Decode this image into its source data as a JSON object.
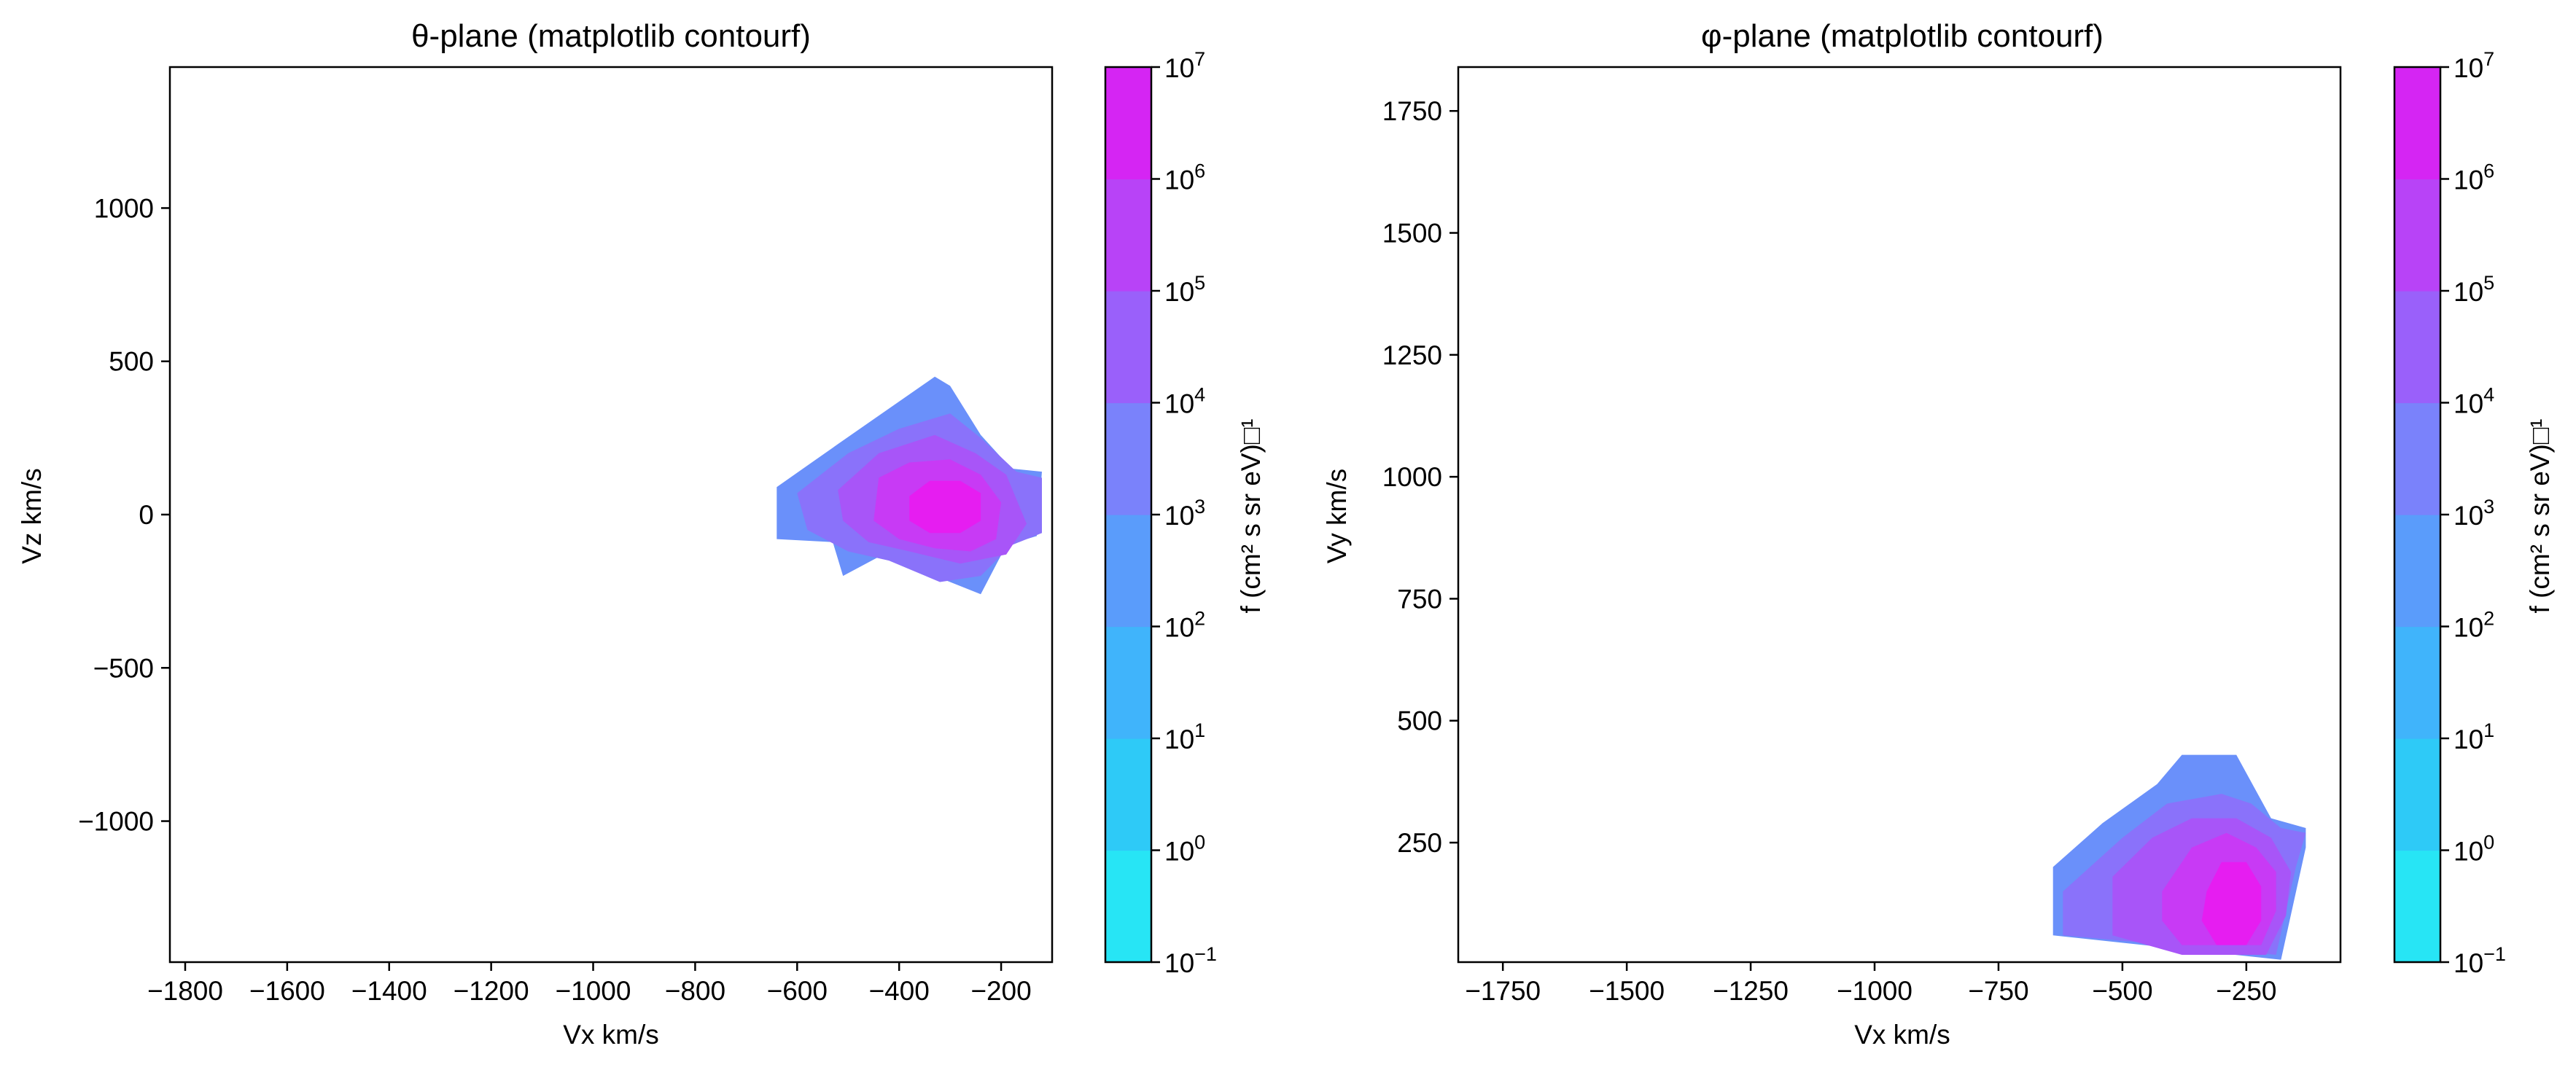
{
  "chart_data": [
    {
      "type": "contour",
      "title": "θ-plane (matplotlib contourf)",
      "xlabel": "Vx km/s",
      "ylabel": "Vz km/s",
      "xlim": [
        -1830,
        -100
      ],
      "ylim": [
        -1460,
        1460
      ],
      "xticks": [
        -1800,
        -1600,
        -1400,
        -1200,
        -1000,
        -800,
        -600,
        -400,
        -200
      ],
      "yticks": [
        -1000,
        -500,
        0,
        500,
        1000
      ],
      "colorbar": {
        "label": "f (cm² s sr eV)□¹",
        "scale": "log",
        "levels_exp": [
          -1,
          0,
          1,
          2,
          3,
          4,
          5,
          6,
          7
        ],
        "colors": [
          "#27e5f5",
          "#2ecaf7",
          "#40b4fb",
          "#5a9cfb",
          "#7a82fb",
          "#9a60fa",
          "#b843f7",
          "#d525f3",
          "#f00aef"
        ]
      },
      "regions": [
        {
          "level_exp": 2,
          "color": "#6a90fa",
          "points": [
            [
              -640,
              90
            ],
            [
              -520,
              230
            ],
            [
              -330,
              450
            ],
            [
              -300,
              420
            ],
            [
              -240,
              260
            ],
            [
              -180,
              150
            ],
            [
              -120,
              140
            ],
            [
              -130,
              -70
            ],
            [
              -190,
              -100
            ],
            [
              -240,
              -260
            ],
            [
              -330,
              -200
            ],
            [
              -420,
              -120
            ],
            [
              -510,
              -200
            ],
            [
              -530,
              -90
            ],
            [
              -640,
              -80
            ]
          ]
        },
        {
          "level_exp": 3,
          "color": "#8a72fa",
          "points": [
            [
              -600,
              70
            ],
            [
              -500,
              200
            ],
            [
              -400,
              280
            ],
            [
              -300,
              330
            ],
            [
              -240,
              250
            ],
            [
              -170,
              140
            ],
            [
              -120,
              120
            ],
            [
              -120,
              -60
            ],
            [
              -180,
              -100
            ],
            [
              -240,
              -200
            ],
            [
              -320,
              -220
            ],
            [
              -420,
              -150
            ],
            [
              -500,
              -120
            ],
            [
              -580,
              -50
            ]
          ]
        },
        {
          "level_exp": 4,
          "color": "#a855f8",
          "points": [
            [
              -520,
              80
            ],
            [
              -440,
              200
            ],
            [
              -330,
              260
            ],
            [
              -250,
              200
            ],
            [
              -190,
              130
            ],
            [
              -150,
              -30
            ],
            [
              -190,
              -130
            ],
            [
              -280,
              -160
            ],
            [
              -380,
              -120
            ],
            [
              -460,
              -90
            ],
            [
              -510,
              -20
            ]
          ]
        },
        {
          "level_exp": 5,
          "color": "#c83af5",
          "points": [
            [
              -440,
              120
            ],
            [
              -380,
              170
            ],
            [
              -300,
              180
            ],
            [
              -240,
              130
            ],
            [
              -200,
              40
            ],
            [
              -210,
              -80
            ],
            [
              -260,
              -120
            ],
            [
              -330,
              -110
            ],
            [
              -400,
              -80
            ],
            [
              -450,
              -20
            ]
          ]
        },
        {
          "level_exp": 6,
          "color": "#e61df1",
          "points": [
            [
              -380,
              60
            ],
            [
              -340,
              110
            ],
            [
              -280,
              110
            ],
            [
              -240,
              70
            ],
            [
              -240,
              -20
            ],
            [
              -280,
              -60
            ],
            [
              -340,
              -60
            ],
            [
              -380,
              -20
            ]
          ]
        }
      ]
    },
    {
      "type": "contour",
      "title": "φ-plane (matplotlib contourf)",
      "xlabel": "Vx km/s",
      "ylabel": "Vy km/s",
      "xlim": [
        -1840,
        -60
      ],
      "ylim": [
        5,
        1840
      ],
      "xticks": [
        -1750,
        -1500,
        -1250,
        -1000,
        -750,
        -500,
        -250
      ],
      "yticks": [
        250,
        500,
        750,
        1000,
        1250,
        1500,
        1750
      ],
      "colorbar": {
        "label": "f (cm² s sr eV)□¹",
        "scale": "log",
        "levels_exp": [
          -1,
          0,
          1,
          2,
          3,
          4,
          5,
          6,
          7
        ],
        "colors": [
          "#27e5f5",
          "#2ecaf7",
          "#40b4fb",
          "#5a9cfb",
          "#7a82fb",
          "#9a60fa",
          "#b843f7",
          "#d525f3",
          "#f00aef"
        ]
      },
      "regions": [
        {
          "level_exp": 2,
          "color": "#6a90fa",
          "points": [
            [
              -640,
              200
            ],
            [
              -540,
              290
            ],
            [
              -430,
              370
            ],
            [
              -380,
              430
            ],
            [
              -270,
              430
            ],
            [
              -200,
              300
            ],
            [
              -130,
              280
            ],
            [
              -130,
              240
            ],
            [
              -180,
              10
            ],
            [
              -640,
              60
            ]
          ]
        },
        {
          "level_exp": 3,
          "color": "#8a72fa",
          "points": [
            [
              -620,
              150
            ],
            [
              -500,
              260
            ],
            [
              -410,
              330
            ],
            [
              -300,
              350
            ],
            [
              -240,
              330
            ],
            [
              -180,
              280
            ],
            [
              -130,
              270
            ],
            [
              -150,
              200
            ],
            [
              -190,
              20
            ],
            [
              -620,
              60
            ]
          ]
        },
        {
          "level_exp": 4,
          "color": "#a855f8",
          "points": [
            [
              -520,
              180
            ],
            [
              -440,
              260
            ],
            [
              -360,
              300
            ],
            [
              -270,
              300
            ],
            [
              -200,
              260
            ],
            [
              -160,
              190
            ],
            [
              -170,
              100
            ],
            [
              -210,
              20
            ],
            [
              -380,
              20
            ],
            [
              -520,
              60
            ]
          ]
        },
        {
          "level_exp": 5,
          "color": "#c83af5",
          "points": [
            [
              -420,
              150
            ],
            [
              -360,
              240
            ],
            [
              -290,
              270
            ],
            [
              -230,
              240
            ],
            [
              -190,
              190
            ],
            [
              -190,
              110
            ],
            [
              -220,
              40
            ],
            [
              -380,
              40
            ],
            [
              -420,
              90
            ]
          ]
        },
        {
          "level_exp": 6,
          "color": "#e61df1",
          "points": [
            [
              -330,
              150
            ],
            [
              -300,
              210
            ],
            [
              -250,
              210
            ],
            [
              -220,
              160
            ],
            [
              -220,
              90
            ],
            [
              -250,
              40
            ],
            [
              -310,
              40
            ],
            [
              -340,
              90
            ]
          ]
        }
      ]
    }
  ]
}
